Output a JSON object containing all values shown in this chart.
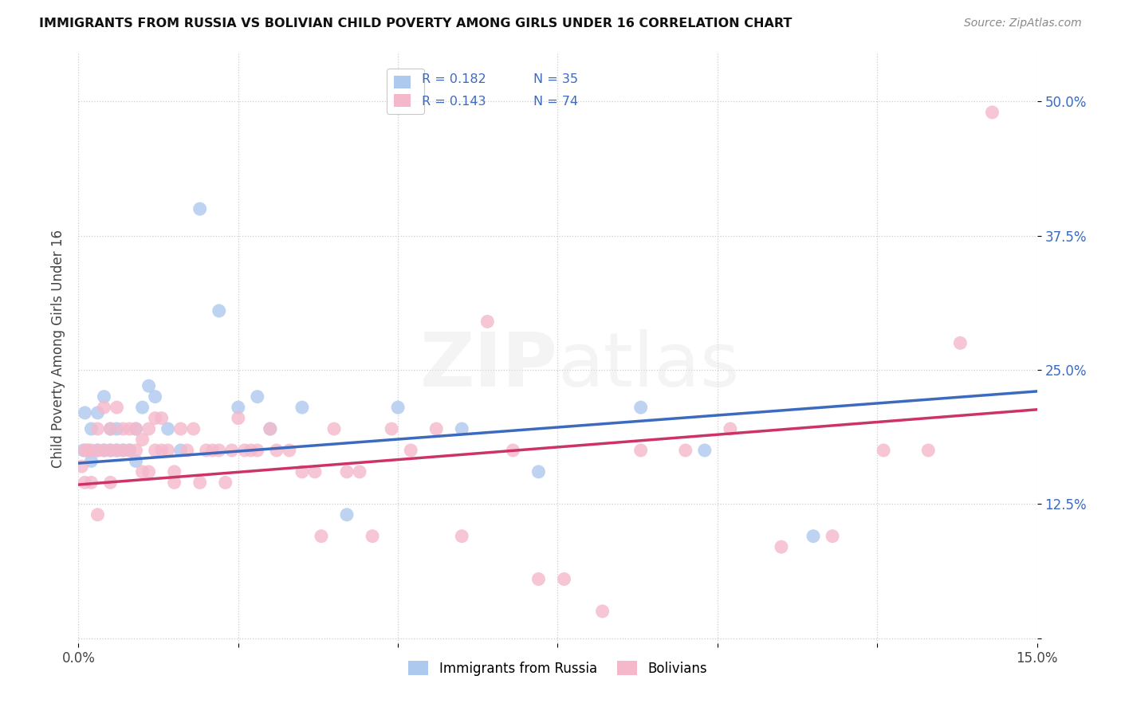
{
  "title": "IMMIGRANTS FROM RUSSIA VS BOLIVIAN CHILD POVERTY AMONG GIRLS UNDER 16 CORRELATION CHART",
  "source": "Source: ZipAtlas.com",
  "ylabel": "Child Poverty Among Girls Under 16",
  "xlim": [
    0.0,
    0.15
  ],
  "ylim": [
    -0.005,
    0.545
  ],
  "ytick_vals": [
    0.0,
    0.125,
    0.25,
    0.375,
    0.5
  ],
  "ytick_labels": [
    "",
    "12.5%",
    "25.0%",
    "37.5%",
    "50.0%"
  ],
  "xtick_vals": [
    0.0,
    0.025,
    0.05,
    0.075,
    0.1,
    0.125,
    0.15
  ],
  "xtick_labels": [
    "0.0%",
    "",
    "",
    "",
    "",
    "",
    "15.0%"
  ],
  "grid_color": "#cccccc",
  "bg_color": "#ffffff",
  "series1_label": "Immigrants from Russia",
  "series2_label": "Bolivians",
  "s1_color": "#aec9ee",
  "s2_color": "#f5b8cb",
  "l1_color": "#3b6abf",
  "l2_color": "#cc3366",
  "text_color": "#3b6abf",
  "r1": "0.182",
  "n1": "35",
  "r2": "0.143",
  "n2": "74",
  "russia_x": [
    0.0008,
    0.001,
    0.0015,
    0.002,
    0.002,
    0.003,
    0.003,
    0.004,
    0.004,
    0.005,
    0.005,
    0.006,
    0.006,
    0.007,
    0.008,
    0.009,
    0.009,
    0.01,
    0.011,
    0.012,
    0.014,
    0.016,
    0.019,
    0.022,
    0.025,
    0.028,
    0.03,
    0.035,
    0.042,
    0.05,
    0.06,
    0.072,
    0.088,
    0.098,
    0.115
  ],
  "russia_y": [
    0.175,
    0.21,
    0.175,
    0.165,
    0.195,
    0.175,
    0.21,
    0.175,
    0.225,
    0.175,
    0.195,
    0.175,
    0.195,
    0.175,
    0.175,
    0.165,
    0.195,
    0.215,
    0.235,
    0.225,
    0.195,
    0.175,
    0.4,
    0.305,
    0.215,
    0.225,
    0.195,
    0.215,
    0.115,
    0.215,
    0.195,
    0.155,
    0.215,
    0.175,
    0.095
  ],
  "bolivia_x": [
    0.0005,
    0.001,
    0.001,
    0.0015,
    0.002,
    0.002,
    0.003,
    0.003,
    0.003,
    0.004,
    0.004,
    0.005,
    0.005,
    0.005,
    0.006,
    0.006,
    0.007,
    0.007,
    0.008,
    0.008,
    0.009,
    0.009,
    0.01,
    0.01,
    0.011,
    0.011,
    0.012,
    0.012,
    0.013,
    0.013,
    0.014,
    0.015,
    0.015,
    0.016,
    0.017,
    0.018,
    0.019,
    0.02,
    0.021,
    0.022,
    0.023,
    0.024,
    0.025,
    0.026,
    0.027,
    0.028,
    0.03,
    0.031,
    0.033,
    0.035,
    0.037,
    0.038,
    0.04,
    0.042,
    0.044,
    0.046,
    0.049,
    0.052,
    0.056,
    0.06,
    0.064,
    0.068,
    0.072,
    0.076,
    0.082,
    0.088,
    0.095,
    0.102,
    0.11,
    0.118,
    0.126,
    0.133,
    0.138,
    0.143
  ],
  "bolivia_y": [
    0.16,
    0.175,
    0.145,
    0.175,
    0.175,
    0.145,
    0.175,
    0.195,
    0.115,
    0.175,
    0.215,
    0.175,
    0.195,
    0.145,
    0.175,
    0.215,
    0.175,
    0.195,
    0.175,
    0.195,
    0.175,
    0.195,
    0.155,
    0.185,
    0.155,
    0.195,
    0.175,
    0.205,
    0.175,
    0.205,
    0.175,
    0.155,
    0.145,
    0.195,
    0.175,
    0.195,
    0.145,
    0.175,
    0.175,
    0.175,
    0.145,
    0.175,
    0.205,
    0.175,
    0.175,
    0.175,
    0.195,
    0.175,
    0.175,
    0.155,
    0.155,
    0.095,
    0.195,
    0.155,
    0.155,
    0.095,
    0.195,
    0.175,
    0.195,
    0.095,
    0.295,
    0.175,
    0.055,
    0.055,
    0.025,
    0.175,
    0.175,
    0.195,
    0.085,
    0.095,
    0.175,
    0.175,
    0.275,
    0.49
  ]
}
